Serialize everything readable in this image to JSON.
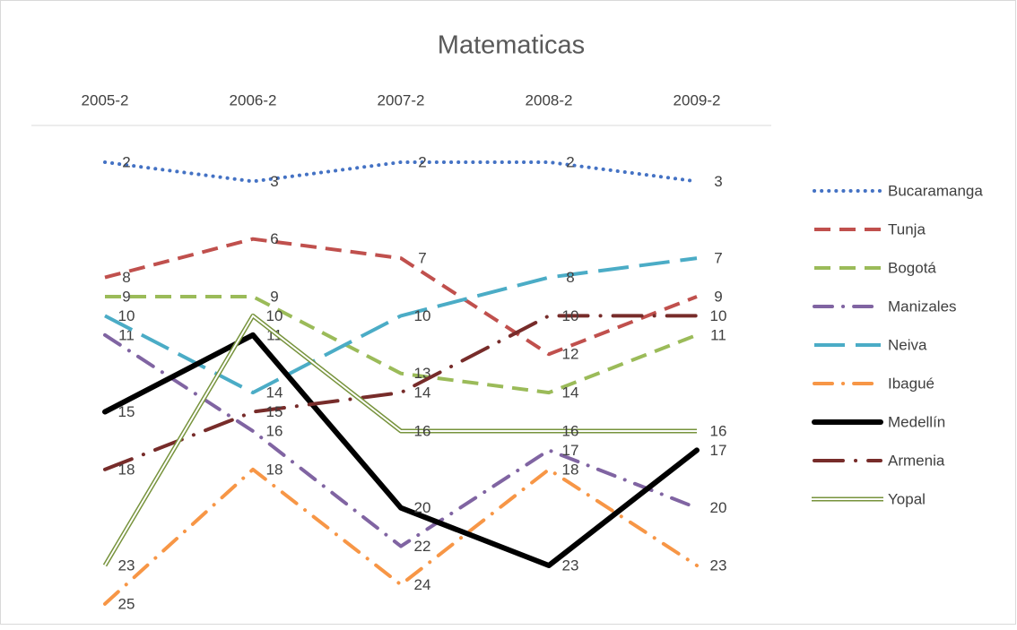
{
  "chart_data": {
    "type": "line",
    "title": "Matematicas",
    "categories": [
      "2005-2",
      "2006-2",
      "2007-2",
      "2008-2",
      "2009-2"
    ],
    "y_inverted": true,
    "series": [
      {
        "name": "Bucaramanga",
        "color": "#4472c4",
        "line_style": "dotted",
        "values": [
          2,
          3,
          2,
          2,
          3
        ]
      },
      {
        "name": "Tunja",
        "color": "#c0504d",
        "line_style": "dashed",
        "values": [
          8,
          6,
          7,
          12,
          9
        ]
      },
      {
        "name": "Bogotá",
        "color": "#9bbb59",
        "line_style": "dashed",
        "values": [
          9,
          9,
          13,
          14,
          11
        ]
      },
      {
        "name": "Manizales",
        "color": "#8064a2",
        "line_style": "dash-dot",
        "values": [
          11,
          16,
          22,
          17,
          20
        ]
      },
      {
        "name": "Neiva",
        "color": "#4bacc6",
        "line_style": "long-dash",
        "values": [
          10,
          14,
          10,
          8,
          7
        ]
      },
      {
        "name": "Ibagué",
        "color": "#f79646",
        "line_style": "dash-dot",
        "values": [
          25,
          18,
          24,
          18,
          23
        ]
      },
      {
        "name": "Medellín",
        "color": "#000000",
        "line_style": "solid",
        "values": [
          15,
          11,
          20,
          23,
          17
        ]
      },
      {
        "name": "Armenia",
        "color": "#772c2a",
        "line_style": "long-dash-dot",
        "values": [
          18,
          15,
          14,
          10,
          10
        ]
      },
      {
        "name": "Yopal",
        "color": "#77933c",
        "line_style": "double",
        "values": [
          23,
          10,
          16,
          16,
          16
        ]
      }
    ]
  }
}
